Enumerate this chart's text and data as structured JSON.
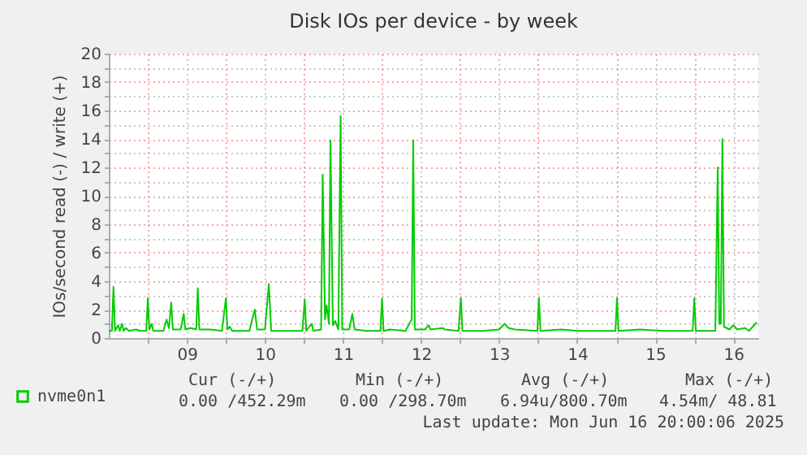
{
  "chart_data": {
    "type": "line",
    "title": "Disk IOs per device - by week",
    "ylabel": "IOs/second read (-) / write (+)",
    "x": [
      8.5,
      8.54,
      8.56,
      8.58,
      8.62,
      8.64,
      8.67,
      8.69,
      8.72,
      8.76,
      8.85,
      8.9,
      8.98,
      9.0,
      9.02,
      9.05,
      9.07,
      9.2,
      9.24,
      9.27,
      9.3,
      9.32,
      9.42,
      9.46,
      9.48,
      9.55,
      9.62,
      9.64,
      9.66,
      9.8,
      9.95,
      10.0,
      10.02,
      10.05,
      10.08,
      10.3,
      10.37,
      10.4,
      10.5,
      10.55,
      10.58,
      10.8,
      10.98,
      11.01,
      11.03,
      11.1,
      11.12,
      11.22,
      11.24,
      11.27,
      11.29,
      11.32,
      11.34,
      11.37,
      11.4,
      11.44,
      11.47,
      11.49,
      11.58,
      11.62,
      11.65,
      11.8,
      11.98,
      12.0,
      12.02,
      12.1,
      12.3,
      12.35,
      12.38,
      12.4,
      12.42,
      12.55,
      12.6,
      12.62,
      12.78,
      12.8,
      12.98,
      13.01,
      13.03,
      13.3,
      13.5,
      13.57,
      13.62,
      13.7,
      13.99,
      14.01,
      14.03,
      14.3,
      14.5,
      14.99,
      15.01,
      15.03,
      15.3,
      15.6,
      15.98,
      16.0,
      16.02,
      16.27,
      16.3,
      16.32,
      16.34,
      16.36,
      16.38,
      16.45,
      16.5,
      16.55,
      16.65,
      16.7,
      16.75,
      16.8
    ],
    "series": [
      {
        "name": "nvme0n1",
        "color": "#00cc00",
        "values": [
          0.5,
          0.5,
          3.6,
          0.5,
          0.9,
          0.5,
          1.0,
          0.5,
          0.7,
          0.5,
          0.6,
          0.5,
          0.5,
          2.8,
          0.6,
          1.0,
          0.5,
          0.5,
          1.3,
          0.7,
          2.5,
          0.6,
          0.6,
          1.7,
          0.6,
          0.7,
          0.6,
          3.5,
          0.6,
          0.6,
          0.5,
          2.8,
          0.6,
          0.8,
          0.5,
          0.5,
          2.0,
          0.6,
          0.6,
          3.8,
          0.5,
          0.5,
          0.5,
          2.7,
          0.5,
          1.0,
          0.5,
          0.6,
          11.5,
          1.3,
          2.3,
          1.0,
          13.9,
          0.9,
          1.2,
          0.6,
          15.6,
          0.6,
          0.6,
          1.7,
          0.6,
          0.5,
          0.5,
          2.8,
          0.5,
          0.6,
          0.5,
          1.0,
          1.3,
          13.9,
          0.6,
          0.6,
          0.9,
          0.6,
          0.7,
          0.6,
          0.5,
          2.8,
          0.5,
          0.5,
          0.6,
          1.0,
          0.7,
          0.6,
          0.5,
          2.8,
          0.5,
          0.6,
          0.5,
          0.5,
          2.8,
          0.5,
          0.6,
          0.5,
          0.5,
          2.8,
          0.5,
          0.5,
          12.0,
          1.0,
          1.0,
          14.0,
          0.8,
          0.6,
          0.9,
          0.6,
          0.7,
          0.5,
          0.8,
          1.1
        ]
      }
    ],
    "xlim": [
      8.5,
      16.82
    ],
    "xticks": [
      {
        "value": 9,
        "label": null
      },
      {
        "value": 9.5,
        "label": "09"
      },
      {
        "value": 10,
        "label": null
      },
      {
        "value": 10.5,
        "label": "10"
      },
      {
        "value": 11,
        "label": null
      },
      {
        "value": 11.5,
        "label": "11"
      },
      {
        "value": 12,
        "label": null
      },
      {
        "value": 12.5,
        "label": "12"
      },
      {
        "value": 13,
        "label": null
      },
      {
        "value": 13.5,
        "label": "13"
      },
      {
        "value": 14,
        "label": null
      },
      {
        "value": 14.5,
        "label": "14"
      },
      {
        "value": 15,
        "label": null
      },
      {
        "value": 15.5,
        "label": "15"
      },
      {
        "value": 16,
        "label": null
      },
      {
        "value": 16.5,
        "label": "16"
      }
    ],
    "ylim": [
      0,
      20
    ],
    "yticks": [
      0,
      {
        "value": 1,
        "label": null
      },
      2,
      {
        "value": 3,
        "label": null
      },
      4,
      {
        "value": 5,
        "label": null
      },
      6,
      {
        "value": 7,
        "label": null
      },
      8,
      {
        "value": 9,
        "label": null
      },
      10,
      {
        "value": 11,
        "label": null
      },
      12,
      {
        "value": 13,
        "label": null
      },
      14,
      {
        "value": 15,
        "label": null
      },
      16,
      {
        "value": 17,
        "label": null
      },
      18,
      {
        "value": 19,
        "label": null
      },
      20
    ],
    "grid": true,
    "legend": "bottom left",
    "marker": "none",
    "line_style": "solid",
    "annotations": [
      "Cur (-/+)",
      "0.00 /452.29m",
      "Min (-/+)",
      "0.00 /298.70m",
      "Avg (-/+)",
      "6.94u/800.70m",
      "Max (-/+)",
      "4.54m/ 48.81",
      "Last update: Mon Jun 16 20:00:06 2025"
    ]
  }
}
